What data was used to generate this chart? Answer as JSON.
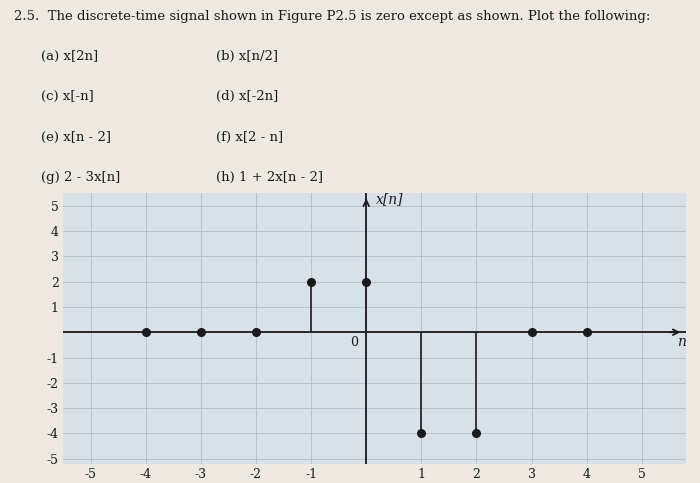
{
  "title": "x[n]",
  "xlabel": "n",
  "xlim": [
    -5.5,
    5.8
  ],
  "ylim": [
    -5.2,
    5.5
  ],
  "xticks": [
    -5,
    -4,
    -3,
    -2,
    -1,
    0,
    1,
    2,
    3,
    4,
    5
  ],
  "yticks": [
    -5,
    -4,
    -3,
    -2,
    -1,
    0,
    1,
    2,
    3,
    4,
    5
  ],
  "signal": {
    "n": [
      -4,
      -3,
      -2,
      -1,
      0,
      1,
      2,
      3,
      4
    ],
    "x": [
      0,
      0,
      0,
      2,
      2,
      -4,
      -4,
      0,
      0
    ]
  },
  "zero_dots": [
    -4,
    -3,
    -2,
    3,
    4
  ],
  "stem_color": "#2a2a2a",
  "dot_color": "#1a1a1a",
  "axis_color": "#1a1a1a",
  "grid_color": "#b8c4cc",
  "bg_color": "#d8e0e8",
  "paper_color": "#ede9e0",
  "text_color": "#1a1a1a",
  "header_line": "2.5.  The discrete-time signal shown in Figure P2.5 is zero except as shown. Plot the following:",
  "items_left": [
    "(a) x[2n]",
    "(c) x[-n]",
    "(e) x[n - 2]",
    "(g) 2 - 3x[n]"
  ],
  "items_right": [
    "(b) x[n/2]",
    "(d) x[-2n]",
    "(f) x[2 - n]",
    "(h) 1 + 2x[n - 2]"
  ]
}
